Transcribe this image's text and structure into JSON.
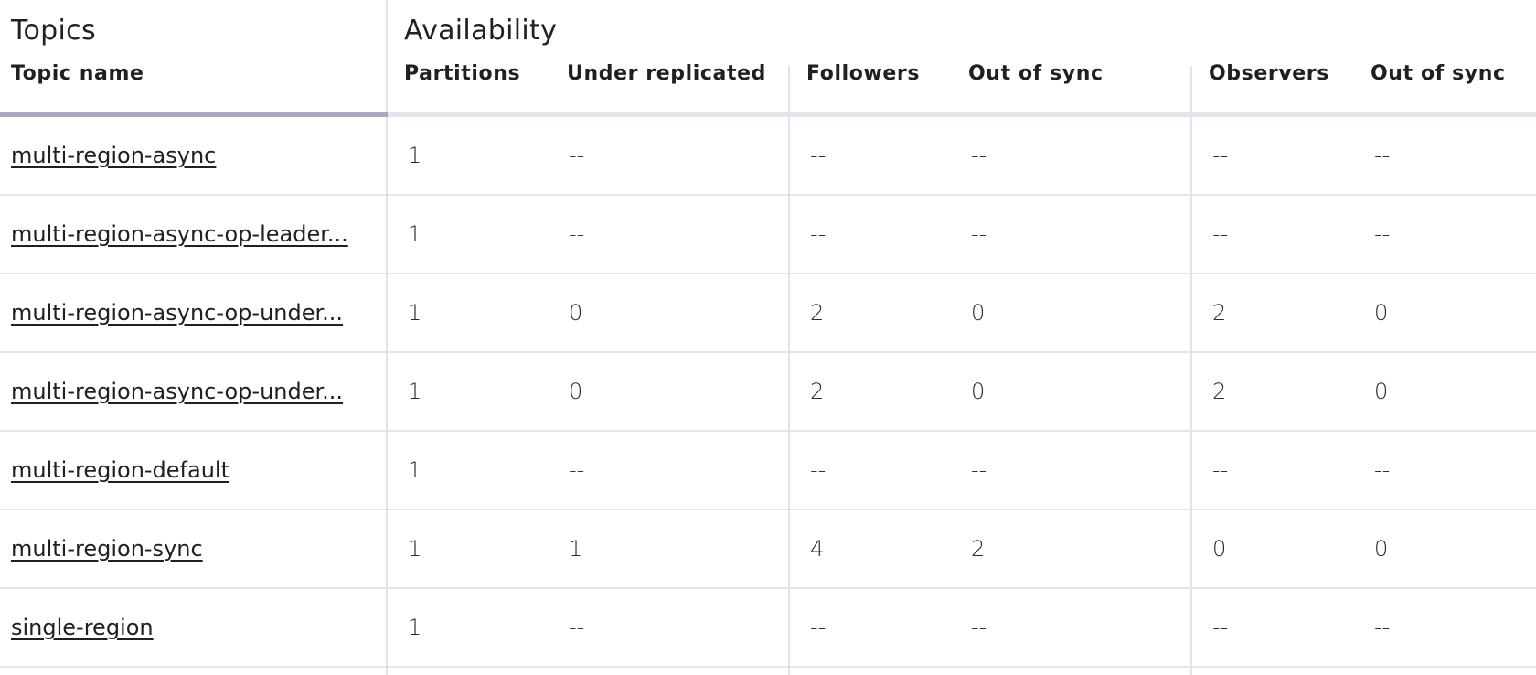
{
  "groups": {
    "topics": "Topics",
    "availability": "Availability"
  },
  "columns": {
    "topic_name": "Topic name",
    "partitions": "Partitions",
    "under_replicated": "Under replicated",
    "followers": "Followers",
    "followers_out_of_sync": "Out of sync",
    "observers": "Observers",
    "observers_out_of_sync": "Out of sync"
  },
  "rows": [
    {
      "topic": "multi-region-async",
      "partitions": "1",
      "under_replicated": "--",
      "followers": "--",
      "followers_out_of_sync": "--",
      "observers": "--",
      "observers_out_of_sync": "--"
    },
    {
      "topic": "multi-region-async-op-leader...",
      "partitions": "1",
      "under_replicated": "--",
      "followers": "--",
      "followers_out_of_sync": "--",
      "observers": "--",
      "observers_out_of_sync": "--"
    },
    {
      "topic": "multi-region-async-op-under...",
      "partitions": "1",
      "under_replicated": "0",
      "followers": "2",
      "followers_out_of_sync": "0",
      "observers": "2",
      "observers_out_of_sync": "0"
    },
    {
      "topic": "multi-region-async-op-under...",
      "partitions": "1",
      "under_replicated": "0",
      "followers": "2",
      "followers_out_of_sync": "0",
      "observers": "2",
      "observers_out_of_sync": "0"
    },
    {
      "topic": "multi-region-default",
      "partitions": "1",
      "under_replicated": "--",
      "followers": "--",
      "followers_out_of_sync": "--",
      "observers": "--",
      "observers_out_of_sync": "--"
    },
    {
      "topic": "multi-region-sync",
      "partitions": "1",
      "under_replicated": "1",
      "followers": "4",
      "followers_out_of_sync": "2",
      "observers": "0",
      "observers_out_of_sync": "0"
    },
    {
      "topic": "single-region",
      "partitions": "1",
      "under_replicated": "--",
      "followers": "--",
      "followers_out_of_sync": "--",
      "observers": "--",
      "observers_out_of_sync": "--"
    }
  ]
}
